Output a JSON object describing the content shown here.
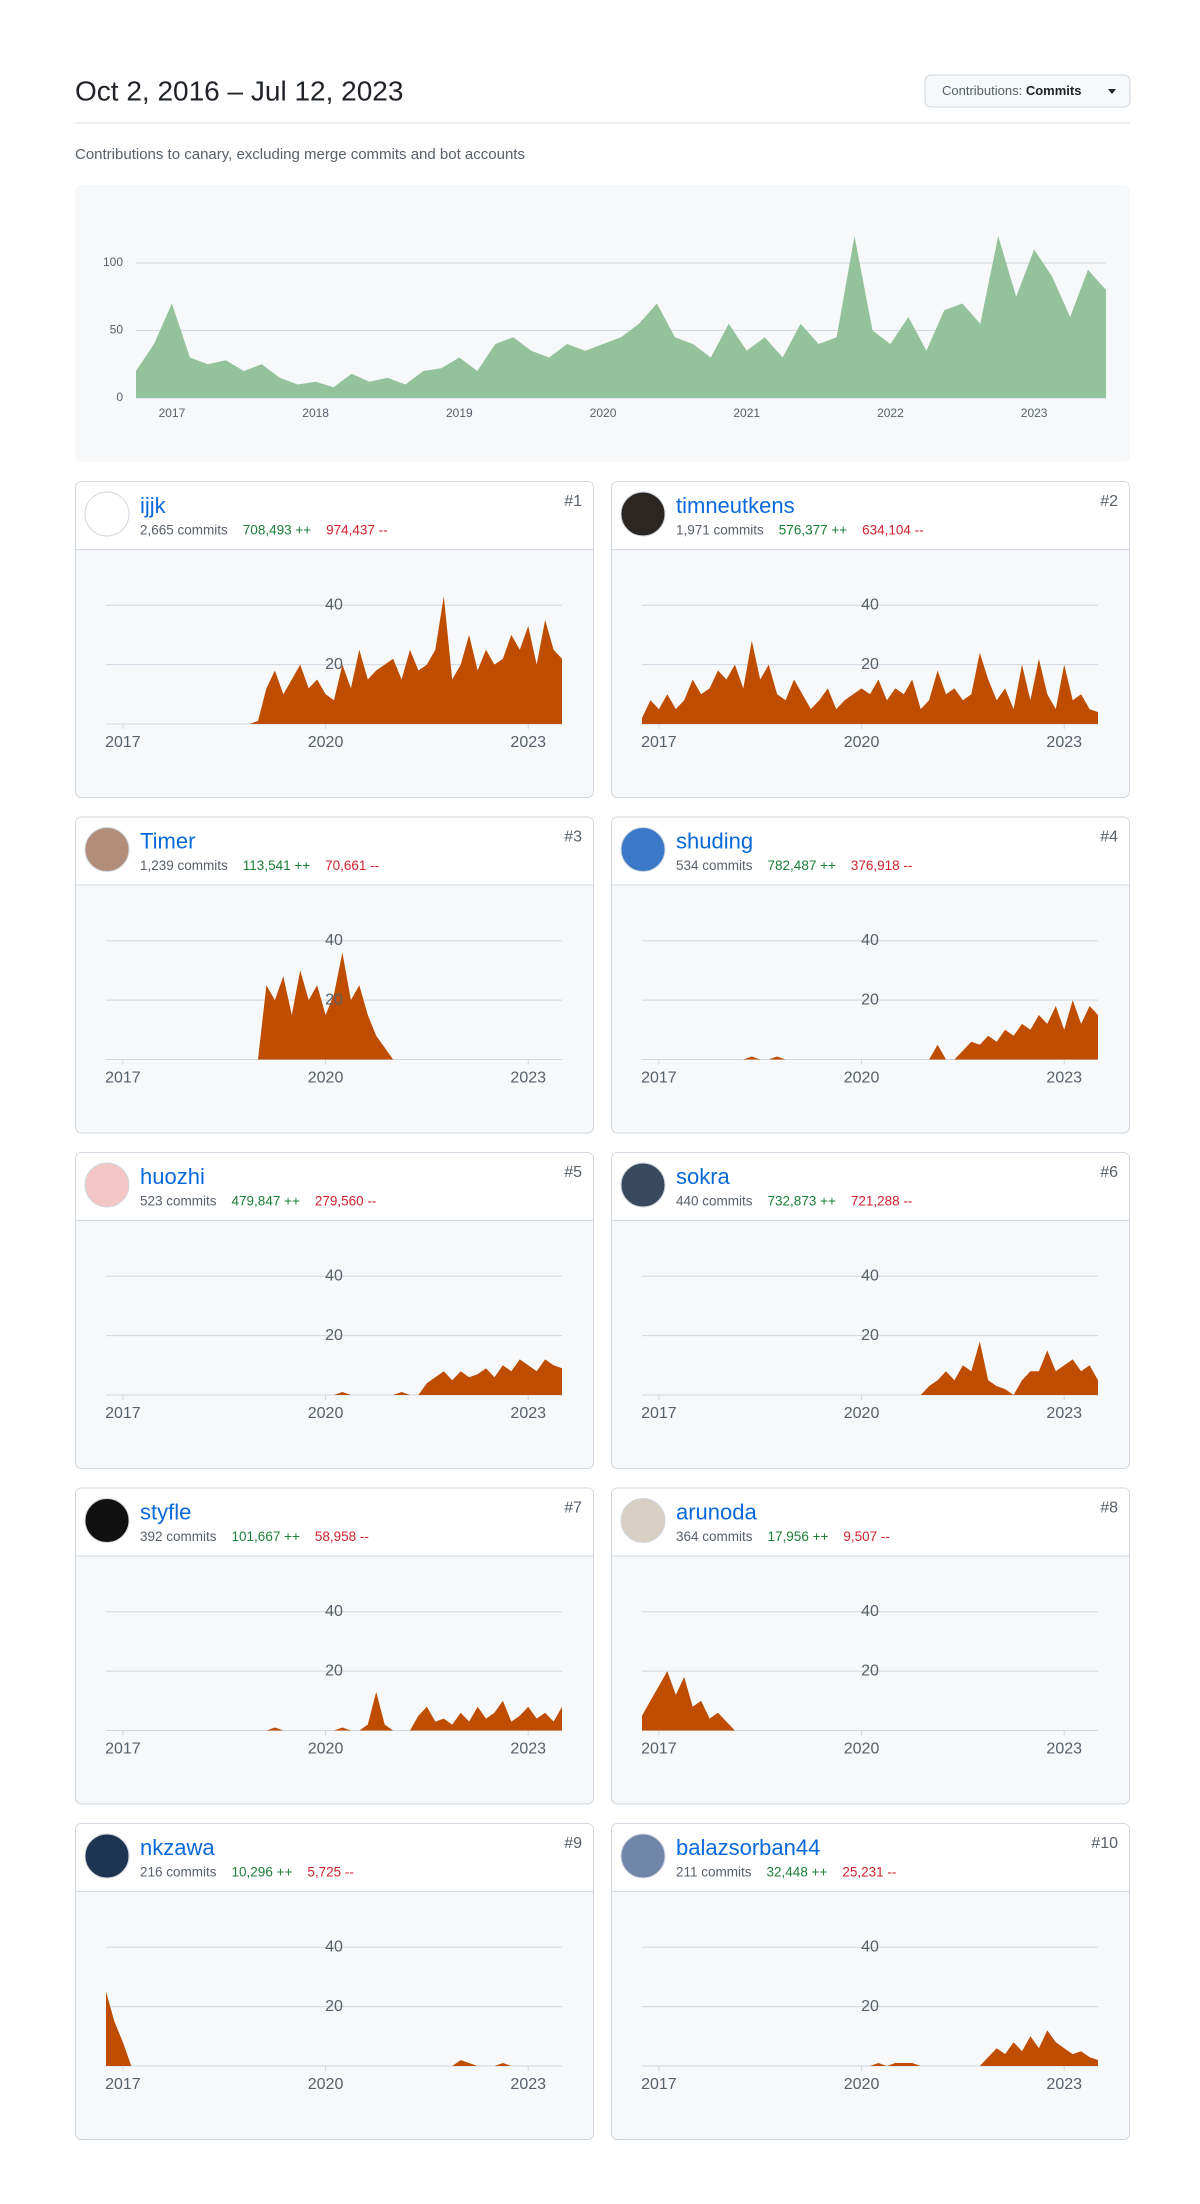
{
  "header": {
    "title": "Oct 2, 2016 – Jul 12, 2023",
    "filter_label": "Contributions:",
    "filter_value": "Commits"
  },
  "subtitle": "Contributions to canary, excluding merge commits and bot accounts",
  "overview": {
    "type": "area",
    "color": "#94c29b",
    "grid": true,
    "x": [
      2016.75,
      2016.875,
      2017,
      2017.125,
      2017.25,
      2017.375,
      2017.5,
      2017.625,
      2017.75,
      2017.875,
      2018,
      2018.125,
      2018.25,
      2018.375,
      2018.5,
      2018.625,
      2018.75,
      2018.875,
      2019,
      2019.125,
      2019.25,
      2019.375,
      2019.5,
      2019.625,
      2019.75,
      2019.875,
      2020,
      2020.125,
      2020.25,
      2020.375,
      2020.5,
      2020.625,
      2020.75,
      2020.875,
      2021,
      2021.125,
      2021.25,
      2021.375,
      2021.5,
      2021.625,
      2021.75,
      2021.875,
      2022,
      2022.125,
      2022.25,
      2022.375,
      2022.5,
      2022.625,
      2022.75,
      2022.875,
      2023,
      2023.125,
      2023.25,
      2023.375,
      2023.5
    ],
    "values": [
      20,
      40,
      70,
      30,
      25,
      28,
      20,
      25,
      15,
      10,
      12,
      8,
      18,
      12,
      15,
      10,
      20,
      22,
      30,
      20,
      40,
      45,
      35,
      30,
      40,
      35,
      40,
      45,
      55,
      70,
      45,
      40,
      30,
      55,
      35,
      45,
      30,
      55,
      40,
      45,
      120,
      50,
      40,
      60,
      35,
      65,
      70,
      55,
      120,
      75,
      110,
      90,
      60,
      95,
      80
    ],
    "xlim": [
      2016.75,
      2023.5
    ],
    "xticks": [
      2017,
      2018,
      2019,
      2020,
      2021,
      2022,
      2023
    ],
    "ylim": [
      0,
      120
    ],
    "yticks": [
      0,
      50,
      100
    ]
  },
  "contributor_axes": {
    "type": "area",
    "color": "#bf4d00",
    "grid": true,
    "x": [
      2016.75,
      2016.875,
      2017,
      2017.125,
      2017.25,
      2017.375,
      2017.5,
      2017.625,
      2017.75,
      2017.875,
      2018,
      2018.125,
      2018.25,
      2018.375,
      2018.5,
      2018.625,
      2018.75,
      2018.875,
      2019,
      2019.125,
      2019.25,
      2019.375,
      2019.5,
      2019.625,
      2019.75,
      2019.875,
      2020,
      2020.125,
      2020.25,
      2020.375,
      2020.5,
      2020.625,
      2020.75,
      2020.875,
      2021,
      2021.125,
      2021.25,
      2021.375,
      2021.5,
      2021.625,
      2021.75,
      2021.875,
      2022,
      2022.125,
      2022.25,
      2022.375,
      2022.5,
      2022.625,
      2022.75,
      2022.875,
      2023,
      2023.125,
      2023.25,
      2023.375,
      2023.5
    ],
    "xlim": [
      2016.75,
      2023.5
    ],
    "xticks": [
      2017,
      2020,
      2023
    ],
    "ylim": [
      0,
      50
    ],
    "yticks": [
      20,
      40
    ]
  },
  "contributors": [
    {
      "rank": "#1",
      "name": "ijjk",
      "commits": "2,665 commits",
      "additions": "708,493 ++",
      "deletions": "974,437 --",
      "values": [
        0,
        0,
        0,
        0,
        0,
        0,
        0,
        0,
        0,
        0,
        0,
        0,
        0,
        0,
        0,
        0,
        0,
        0,
        1,
        12,
        18,
        10,
        15,
        20,
        12,
        15,
        10,
        8,
        20,
        12,
        25,
        15,
        18,
        20,
        22,
        15,
        25,
        18,
        20,
        25,
        43,
        15,
        20,
        30,
        18,
        25,
        20,
        22,
        30,
        25,
        33,
        20,
        35,
        25,
        22
      ]
    },
    {
      "rank": "#2",
      "name": "timneutkens",
      "commits": "1,971 commits",
      "additions": "576,377 ++",
      "deletions": "634,104 --",
      "values": [
        2,
        8,
        5,
        10,
        5,
        8,
        15,
        10,
        12,
        18,
        15,
        20,
        12,
        28,
        15,
        20,
        10,
        8,
        15,
        10,
        5,
        8,
        12,
        5,
        8,
        10,
        12,
        10,
        15,
        8,
        12,
        10,
        15,
        5,
        8,
        18,
        10,
        12,
        8,
        10,
        24,
        15,
        8,
        12,
        5,
        20,
        8,
        22,
        10,
        5,
        20,
        8,
        10,
        5,
        4
      ]
    },
    {
      "rank": "#3",
      "name": "Timer",
      "commits": "1,239 commits",
      "additions": "113,541 ++",
      "deletions": "70,661 --",
      "values": [
        0,
        0,
        0,
        0,
        0,
        0,
        0,
        0,
        0,
        0,
        0,
        0,
        0,
        0,
        0,
        0,
        0,
        0,
        0,
        25,
        20,
        28,
        15,
        30,
        20,
        25,
        15,
        22,
        36,
        20,
        25,
        15,
        8,
        4,
        0,
        0,
        0,
        0,
        0,
        0,
        0,
        0,
        0,
        0,
        0,
        0,
        0,
        0,
        0,
        0,
        0,
        0,
        0,
        0,
        0
      ]
    },
    {
      "rank": "#4",
      "name": "shuding",
      "commits": "534 commits",
      "additions": "782,487 ++",
      "deletions": "376,918 --",
      "values": [
        0,
        0,
        0,
        0,
        0,
        0,
        0,
        0,
        0,
        0,
        0,
        0,
        0,
        1,
        0,
        0,
        1,
        0,
        0,
        0,
        0,
        0,
        0,
        0,
        0,
        0,
        0,
        0,
        0,
        0,
        0,
        0,
        0,
        0,
        0,
        5,
        0,
        0,
        3,
        6,
        5,
        8,
        6,
        10,
        8,
        12,
        10,
        15,
        12,
        18,
        10,
        20,
        12,
        18,
        15
      ]
    },
    {
      "rank": "#5",
      "name": "huozhi",
      "commits": "523 commits",
      "additions": "479,847 ++",
      "deletions": "279,560 --",
      "values": [
        0,
        0,
        0,
        0,
        0,
        0,
        0,
        0,
        0,
        0,
        0,
        0,
        0,
        0,
        0,
        0,
        0,
        0,
        0,
        0,
        0,
        0,
        0,
        0,
        0,
        0,
        0,
        0,
        1,
        0,
        0,
        0,
        0,
        0,
        0,
        1,
        0,
        0,
        4,
        6,
        8,
        5,
        8,
        6,
        7,
        9,
        6,
        10,
        8,
        12,
        10,
        8,
        12,
        10,
        9
      ]
    },
    {
      "rank": "#6",
      "name": "sokra",
      "commits": "440 commits",
      "additions": "732,873 ++",
      "deletions": "721,288 --",
      "values": [
        0,
        0,
        0,
        0,
        0,
        0,
        0,
        0,
        0,
        0,
        0,
        0,
        0,
        0,
        0,
        0,
        0,
        0,
        0,
        0,
        0,
        0,
        0,
        0,
        0,
        0,
        0,
        0,
        0,
        0,
        0,
        0,
        0,
        0,
        3,
        5,
        8,
        5,
        10,
        8,
        18,
        5,
        3,
        2,
        0,
        5,
        8,
        8,
        15,
        8,
        10,
        12,
        8,
        10,
        5
      ]
    },
    {
      "rank": "#7",
      "name": "styfle",
      "commits": "392 commits",
      "additions": "101,667 ++",
      "deletions": "58,958 --",
      "values": [
        0,
        0,
        0,
        0,
        0,
        0,
        0,
        0,
        0,
        0,
        0,
        0,
        0,
        0,
        0,
        0,
        0,
        0,
        0,
        0,
        1,
        0,
        0,
        0,
        0,
        0,
        0,
        0,
        1,
        0,
        0,
        2,
        13,
        2,
        0,
        0,
        0,
        5,
        8,
        3,
        4,
        2,
        6,
        3,
        8,
        4,
        6,
        10,
        3,
        5,
        8,
        4,
        6,
        3,
        8
      ]
    },
    {
      "rank": "#8",
      "name": "arunoda",
      "commits": "364 commits",
      "additions": "17,956 ++",
      "deletions": "9,507 --",
      "values": [
        5,
        10,
        15,
        20,
        12,
        18,
        8,
        10,
        4,
        6,
        3,
        0,
        0,
        0,
        0,
        0,
        0,
        0,
        0,
        0,
        0,
        0,
        0,
        0,
        0,
        0,
        0,
        0,
        0,
        0,
        0,
        0,
        0,
        0,
        0,
        0,
        0,
        0,
        0,
        0,
        0,
        0,
        0,
        0,
        0,
        0,
        0,
        0,
        0,
        0,
        0,
        0,
        0,
        0,
        0
      ]
    },
    {
      "rank": "#9",
      "name": "nkzawa",
      "commits": "216 commits",
      "additions": "10,296 ++",
      "deletions": "5,725 --",
      "values": [
        25,
        15,
        8,
        0,
        0,
        0,
        0,
        0,
        0,
        0,
        0,
        0,
        0,
        0,
        0,
        0,
        0,
        0,
        0,
        0,
        0,
        0,
        0,
        0,
        0,
        0,
        0,
        0,
        0,
        0,
        0,
        0,
        0,
        0,
        0,
        0,
        0,
        0,
        0,
        0,
        0,
        0,
        2,
        1,
        0,
        0,
        0,
        1,
        0,
        0,
        0,
        0,
        0,
        0,
        0
      ]
    },
    {
      "rank": "#10",
      "name": "balazsorban44",
      "commits": "211 commits",
      "additions": "32,448 ++",
      "deletions": "25,231 --",
      "values": [
        0,
        0,
        0,
        0,
        0,
        0,
        0,
        0,
        0,
        0,
        0,
        0,
        0,
        0,
        0,
        0,
        0,
        0,
        0,
        0,
        0,
        0,
        0,
        0,
        0,
        0,
        0,
        0,
        1,
        0,
        1,
        1,
        1,
        0,
        0,
        0,
        0,
        0,
        0,
        0,
        0,
        3,
        6,
        4,
        8,
        5,
        10,
        6,
        12,
        8,
        6,
        4,
        5,
        3,
        2
      ]
    }
  ]
}
